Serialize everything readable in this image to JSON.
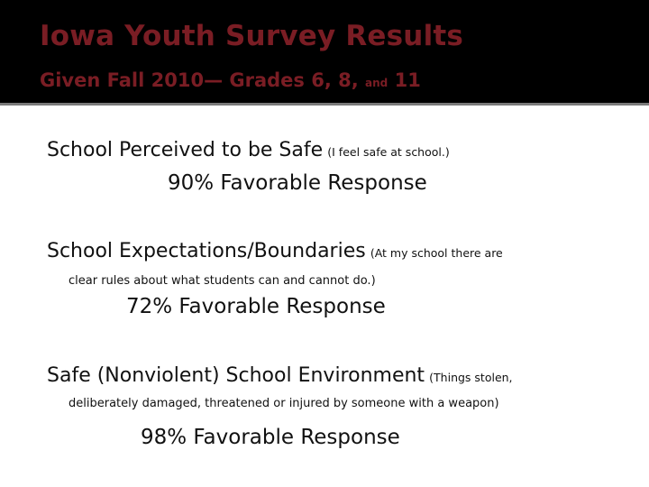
{
  "slide": {
    "title": "Iowa Youth Survey Results",
    "subtitle_main": "Given Fall 2010— Grades 6, 8,",
    "subtitle_and": "and",
    "subtitle_end": "11"
  },
  "items": [
    {
      "heading": "School Perceived to be Safe",
      "note": "(I feel safe at school.)",
      "detail": "",
      "result": "90% Favorable Response"
    },
    {
      "heading": "School Expectations/Boundaries",
      "note": "(At my school there are",
      "detail": "clear rules about what students can and cannot do.)",
      "result": "72% Favorable Response"
    },
    {
      "heading": "Safe (Nonviolent) School Environment",
      "note": "(Things stolen,",
      "detail": "deliberately damaged, threatened or injured by someone with a weapon)",
      "result": "98% Favorable Response"
    }
  ]
}
